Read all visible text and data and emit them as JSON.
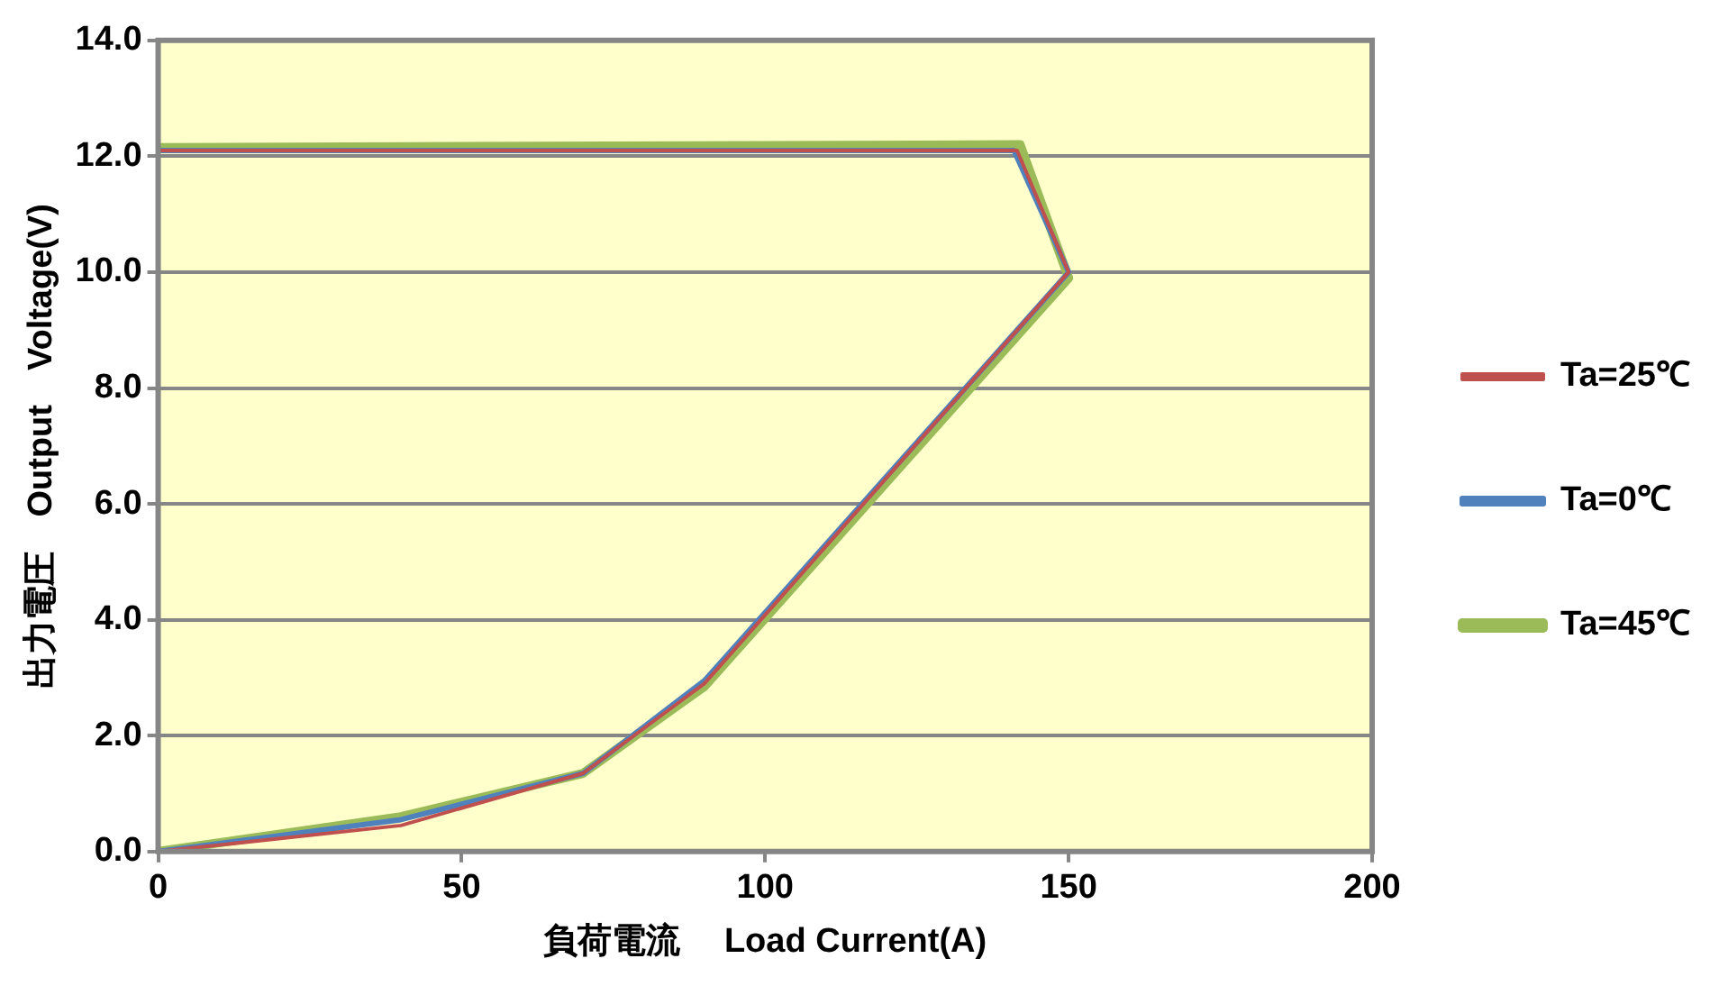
{
  "chart_data": {
    "type": "line",
    "xlabel": "負荷電流　 Load Current(A)",
    "ylabel": "出力電圧　Output　Voltage(V)",
    "xlim": [
      0,
      200
    ],
    "xticks": [
      0,
      50,
      100,
      150,
      200
    ],
    "ylim": [
      0,
      14
    ],
    "yticks": [
      {
        "value": 0,
        "label": "0.0"
      },
      {
        "value": 2,
        "label": "2.0"
      },
      {
        "value": 4,
        "label": "4.0"
      },
      {
        "value": 6,
        "label": "6.0"
      },
      {
        "value": 8,
        "label": "8.0"
      },
      {
        "value": 10,
        "label": "10.0"
      },
      {
        "value": 12,
        "label": "12.0"
      },
      {
        "value": 14,
        "label": "14.0"
      }
    ],
    "grid": "y",
    "legend": "right",
    "marker": "none",
    "line_style": "solid",
    "series": [
      {
        "name": "Ta=0℃",
        "color": "#4f81bd",
        "x": [
          0,
          40,
          70,
          90,
          150,
          141,
          0
        ],
        "values": [
          0,
          0.55,
          1.35,
          2.95,
          10,
          12.1,
          12.1
        ]
      },
      {
        "name": "Ta=25℃",
        "color": "#c0504d",
        "x": [
          0,
          40,
          70,
          90,
          150,
          141.5,
          0
        ],
        "values": [
          0,
          0.45,
          1.35,
          2.9,
          10,
          12.1,
          12.1
        ]
      },
      {
        "name": "Ta=45℃",
        "color": "#9bbb59",
        "x": [
          0,
          40,
          70,
          90,
          150,
          142,
          0
        ],
        "values": [
          0,
          0.6,
          1.35,
          2.85,
          9.9,
          12.2,
          12.15
        ]
      }
    ]
  }
}
